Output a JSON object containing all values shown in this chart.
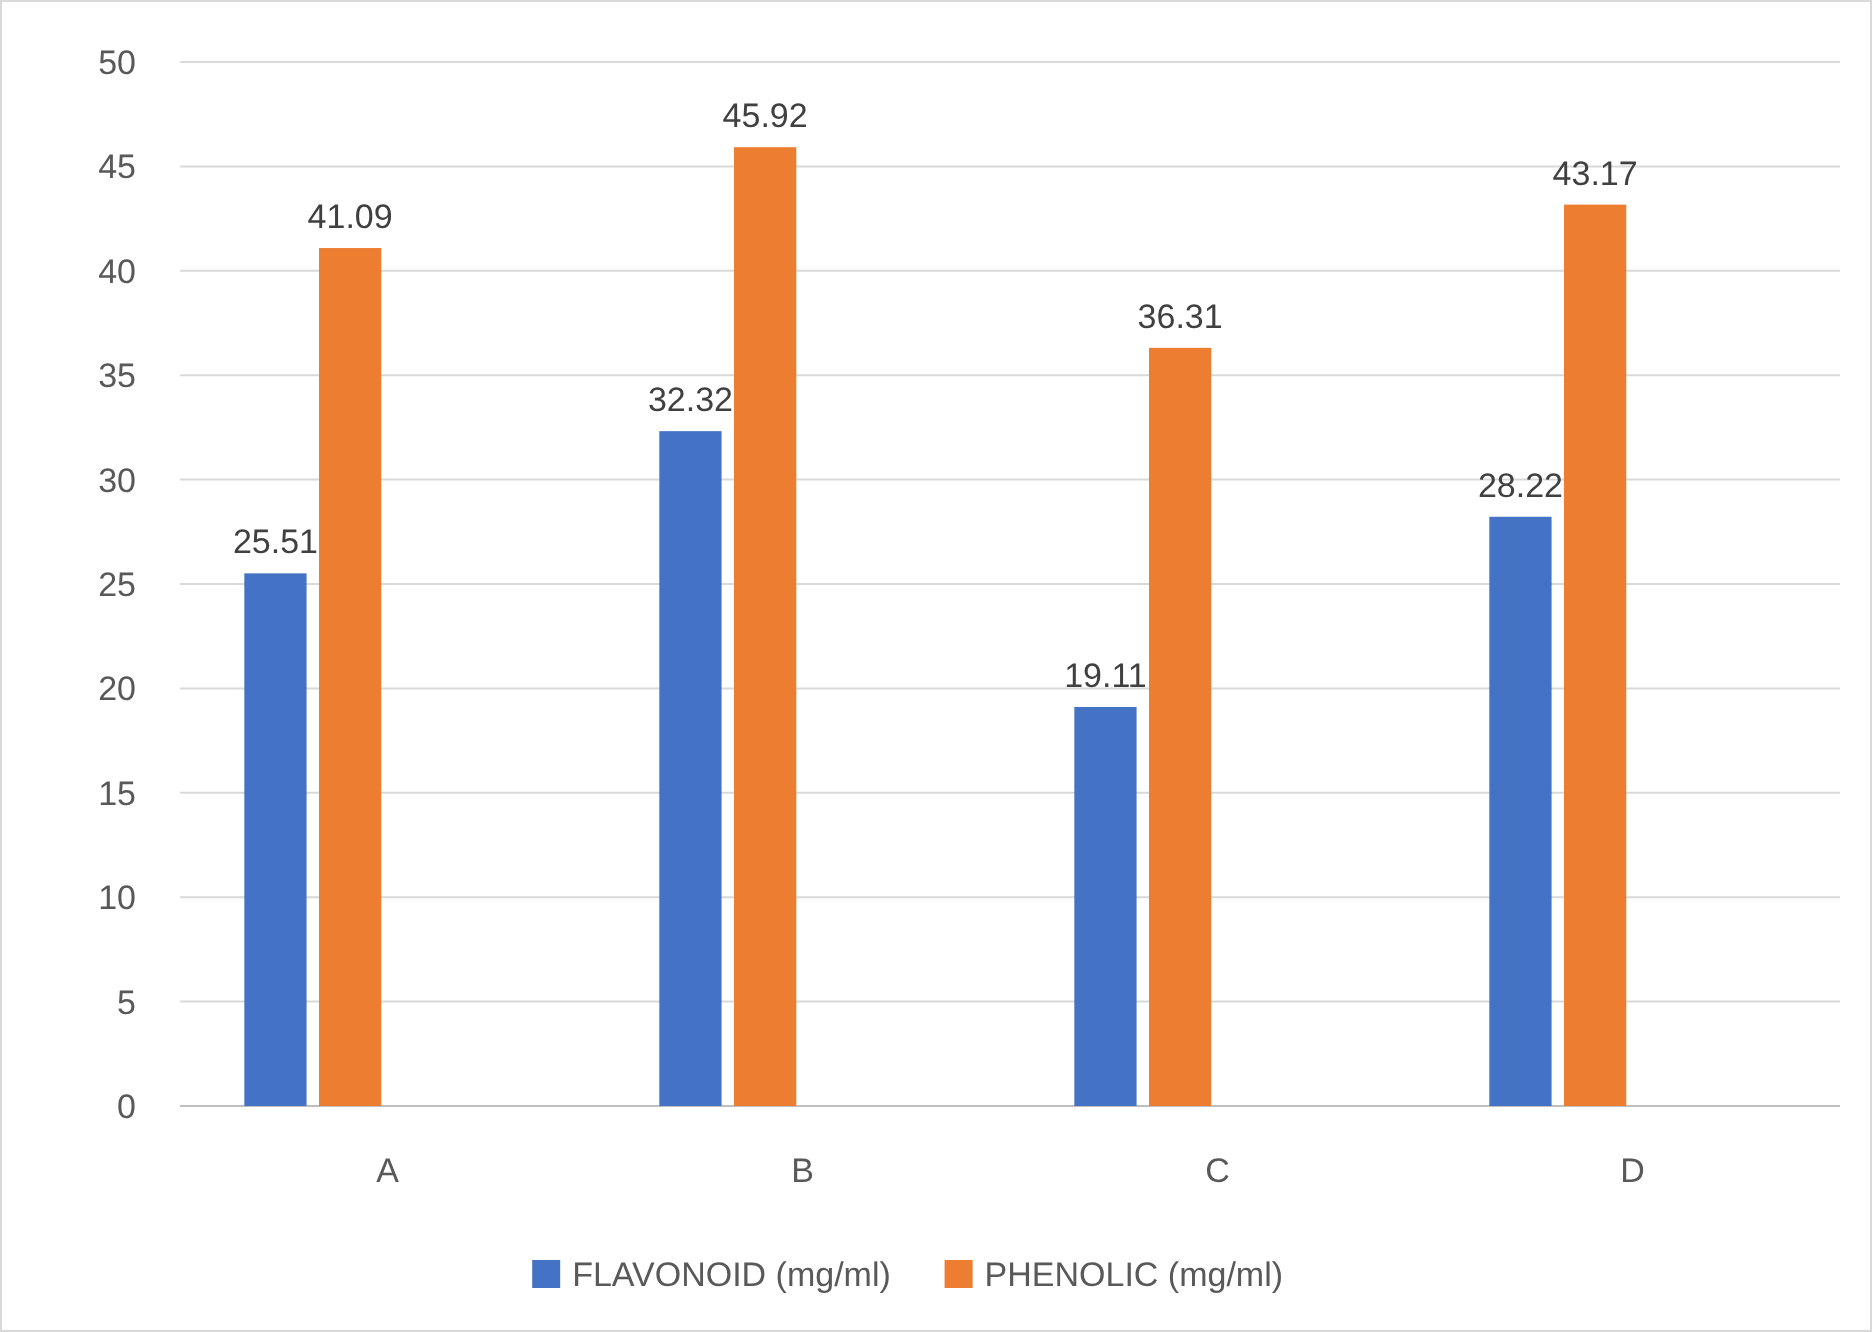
{
  "chart_data": {
    "type": "bar",
    "categories": [
      "A",
      "B",
      "C",
      "D"
    ],
    "series": [
      {
        "name": "FLAVONOID (mg/ml)",
        "color": "#4472c4",
        "values": [
          25.51,
          32.32,
          19.11,
          28.22
        ]
      },
      {
        "name": "PHENOLIC (mg/ml)",
        "color": "#ed7d31",
        "values": [
          41.09,
          45.92,
          36.31,
          43.17
        ]
      }
    ],
    "ylim": [
      0,
      50
    ],
    "yticks": [
      0,
      5,
      10,
      15,
      20,
      25,
      30,
      35,
      40,
      45,
      50
    ],
    "grid": "y",
    "legend": "bottom",
    "data_labels": true
  }
}
